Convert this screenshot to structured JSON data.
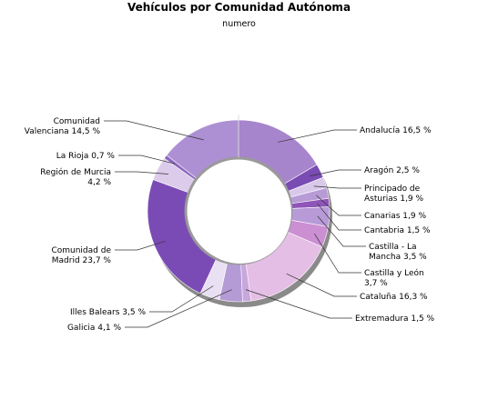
{
  "chart_data": {
    "type": "pie",
    "variant": "donut",
    "title": "Vehículos por Comunidad Autónoma",
    "subtitle": "numero",
    "unit": "%",
    "slices": [
      {
        "label": "Andalucía",
        "value": 16.5,
        "label_lines": [
          "Andalucía 16,5 %"
        ],
        "color": "#a785cc"
      },
      {
        "label": "Aragón",
        "value": 2.5,
        "label_lines": [
          "Aragón 2,5 %"
        ],
        "color": "#7a4bb3"
      },
      {
        "label": "Principado de Asturias",
        "value": 1.9,
        "label_lines": [
          "Principado de",
          "Asturias 1,9 %"
        ],
        "color": "#d9c8ea"
      },
      {
        "label": "Canarias",
        "value": 1.9,
        "label_lines": [
          "Canarias 1,9 %"
        ],
        "color": "#b79bd6"
      },
      {
        "label": "Cantabria",
        "value": 1.5,
        "label_lines": [
          "Cantabria 1,5 %"
        ],
        "color": "#8f55b8"
      },
      {
        "label": "Castilla - La Mancha",
        "value": 3.5,
        "label_lines": [
          "Castilla - La",
          "Mancha 3,5 %"
        ],
        "color": "#b89ad8"
      },
      {
        "label": "Castilla y León",
        "value": 3.7,
        "label_lines": [
          "Castilla y León",
          "3,7 %"
        ],
        "color": "#cc8fd2"
      },
      {
        "label": "Cataluña",
        "value": 16.3,
        "label_lines": [
          "Cataluña 16,3 %"
        ],
        "color": "#e4bee5"
      },
      {
        "label": "Extremadura",
        "value": 1.5,
        "label_lines": [
          "Extremadura 1,5 %"
        ],
        "color": "#c9a7dd"
      },
      {
        "label": "Galicia",
        "value": 4.1,
        "label_lines": [
          "Galicia 4,1 %"
        ],
        "color": "#b49bd6"
      },
      {
        "label": "Illes Balears",
        "value": 3.5,
        "label_lines": [
          "Illes Balears 3,5 %"
        ],
        "color": "#e9e0f3"
      },
      {
        "label": "Comunidad de Madrid",
        "value": 23.7,
        "label_lines": [
          "Comunidad de",
          "Madrid 23,7 %"
        ],
        "color": "#7b4bb5"
      },
      {
        "label": "Región de Murcia",
        "value": 4.2,
        "label_lines": [
          "Región de Murcia",
          "4,2 %"
        ],
        "color": "#dccbea"
      },
      {
        "label": "La Rioja",
        "value": 0.7,
        "label_lines": [
          "La Rioja 0,7 %"
        ],
        "color": "#8c68c0"
      },
      {
        "label": "Comunidad Valenciana",
        "value": 14.5,
        "label_lines": [
          "Comunidad",
          "Valenciana 14,5 %"
        ],
        "color": "#ad90d3"
      }
    ]
  }
}
